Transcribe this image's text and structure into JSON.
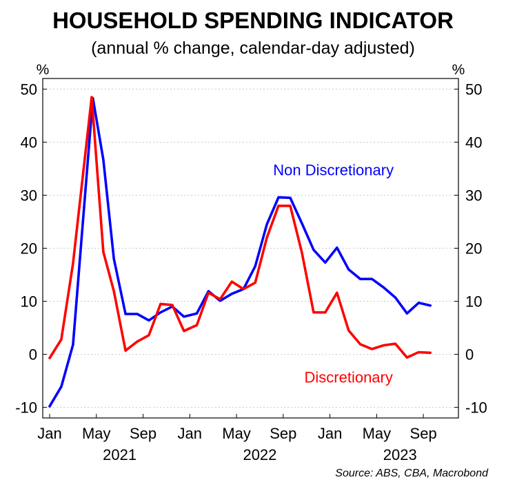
{
  "chart_data": {
    "type": "line",
    "title": "HOUSEHOLD SPENDING INDICATOR",
    "subtitle": "(annual % change, calendar-day adjusted)",
    "ylabel_left": "%",
    "ylabel_right": "%",
    "ylim": [
      -12,
      52
    ],
    "yticks": [
      -10,
      0,
      10,
      20,
      30,
      40,
      50
    ],
    "xlim": [
      0,
      34
    ],
    "xticks": [
      {
        "x": 0,
        "label": "Jan"
      },
      {
        "x": 4,
        "label": "May"
      },
      {
        "x": 8,
        "label": "Sep"
      },
      {
        "x": 12,
        "label": "Jan"
      },
      {
        "x": 16,
        "label": "May"
      },
      {
        "x": 20,
        "label": "Sep"
      },
      {
        "x": 24,
        "label": "Jan"
      },
      {
        "x": 28,
        "label": "May"
      },
      {
        "x": 32,
        "label": "Sep"
      }
    ],
    "year_labels": [
      {
        "x": 6,
        "label": "2021"
      },
      {
        "x": 18,
        "label": "2022"
      },
      {
        "x": 30,
        "label": "2023"
      }
    ],
    "grid": "horizontal dotted",
    "series": [
      {
        "name": "Non Discretionary",
        "color": "#0000ff",
        "x": [
          0,
          1,
          2,
          3.7,
          4.6,
          5.5,
          6.5,
          7.5,
          8.5,
          9.5,
          10.5,
          11.5,
          12.6,
          13.6,
          14.6,
          15.6,
          16.6,
          17.6,
          18.6,
          19.6,
          20.6,
          21.6,
          22.6,
          23.6,
          24.6,
          25.6,
          26.6,
          27.6,
          28.6,
          29.6,
          30.6,
          31.6,
          32.6
        ],
        "values": [
          -9.8,
          -6.1,
          1.8,
          48.3,
          36.7,
          18.0,
          7.6,
          7.6,
          6.4,
          7.9,
          9.0,
          7.1,
          7.7,
          11.9,
          10.1,
          11.4,
          12.3,
          16.6,
          24.5,
          29.6,
          29.5,
          24.7,
          19.7,
          17.3,
          20.1,
          16.0,
          14.2,
          14.2,
          12.6,
          10.7,
          7.7,
          9.7,
          9.2
        ]
      },
      {
        "name": "Discretionary",
        "color": "#ff0000",
        "x": [
          0,
          1,
          2,
          3.6,
          4.6,
          5.5,
          6.5,
          7.5,
          8.5,
          9.5,
          10.5,
          11.5,
          12.6,
          13.6,
          14.6,
          15.6,
          16.6,
          17.6,
          18.6,
          19.6,
          20.6,
          21.6,
          22.6,
          23.6,
          24.6,
          25.6,
          26.6,
          27.6,
          28.6,
          29.6,
          30.6,
          31.6,
          32.6
        ],
        "values": [
          -0.7,
          2.8,
          17.1,
          48.5,
          19.3,
          11.9,
          0.7,
          2.4,
          3.6,
          9.5,
          9.3,
          4.4,
          5.5,
          11.6,
          10.4,
          13.7,
          12.3,
          13.5,
          22.0,
          28.0,
          28.0,
          19.2,
          7.9,
          7.9,
          11.6,
          4.5,
          1.9,
          1.0,
          1.7,
          2.0,
          -0.6,
          0.4,
          0.3
        ]
      }
    ],
    "annotations": [
      {
        "text": "Non Discretionary",
        "series": "Non Discretionary",
        "x": 24.3,
        "y": 34.8
      },
      {
        "text": "Discretionary",
        "series": "Discretionary",
        "x": 25.6,
        "y": -4.3
      }
    ],
    "source": "Source: ABS, CBA, Macrobond"
  }
}
